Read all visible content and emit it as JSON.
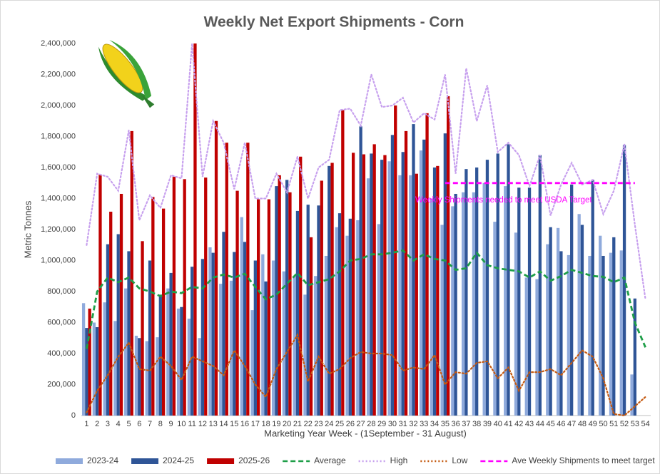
{
  "chart_data": {
    "type": "bar",
    "title": "Weekly Net Export Shipments - Corn",
    "y_label": "Metric Tonnes",
    "x_label": "Marketing Year Week - (1September - 31 August)",
    "annotation": "Weekly Shipments needed to meet USDA Target",
    "grid": false,
    "ylim": [
      0,
      2400000
    ],
    "yticks": [
      0,
      {
        "value": 200000,
        "label": "200,000"
      },
      {
        "value": 400000,
        "label": "400,000"
      },
      {
        "value": 600000,
        "label": "600,000"
      },
      {
        "value": 800000,
        "label": "800,000"
      },
      {
        "value": 1000000,
        "label": "1,000,000"
      },
      {
        "value": 1200000,
        "label": "1,200,000"
      },
      {
        "value": 1400000,
        "label": "1,400,000"
      },
      {
        "value": 1600000,
        "label": "1,600,000"
      },
      {
        "value": 1800000,
        "label": "1,800,000"
      },
      {
        "value": 2000000,
        "label": "2,000,000"
      },
      {
        "value": 2200000,
        "label": "2,200,000"
      },
      {
        "value": 2400000,
        "label": "2,400,000"
      }
    ],
    "categories": [
      "1",
      "2",
      "3",
      "4",
      "5",
      "6",
      "7",
      "8",
      "9",
      "10",
      "11",
      "12",
      "13",
      "14",
      "15",
      "16",
      "17",
      "18",
      "19",
      "20",
      "21",
      "22",
      "23",
      "24",
      "25",
      "26",
      "27",
      "28",
      "29",
      "30",
      "31",
      "32",
      "33",
      "34",
      "35",
      "36",
      "37",
      "38",
      "39",
      "40",
      "41",
      "42",
      "43",
      "44",
      "45",
      "46",
      "47",
      "48",
      "49",
      "50",
      "51",
      "52",
      "53",
      "54"
    ],
    "series": [
      {
        "name": "2023-24",
        "type": "bar",
        "color": "#8faadc",
        "values": [
          725000,
          600000,
          730000,
          610000,
          820000,
          515000,
          480000,
          505000,
          820000,
          690000,
          625000,
          500000,
          1085000,
          850000,
          870000,
          1280000,
          680000,
          1040000,
          1000000,
          930000,
          900000,
          780000,
          900000,
          1030000,
          1215000,
          1160000,
          1260000,
          1530000,
          1235000,
          1640000,
          1550000,
          1550000,
          1710000,
          1400000,
          1230000,
          1350000,
          1440000,
          1440000,
          1500000,
          1250000,
          1480000,
          1180000,
          890000,
          880000,
          1105000,
          1210000,
          1035000,
          1300000,
          1030000,
          1160000,
          1050000,
          1065000,
          265000,
          null
        ]
      },
      {
        "name": "2024-25",
        "type": "bar",
        "color": "#2f5597",
        "values": [
          565000,
          570000,
          1105000,
          1170000,
          1060000,
          500000,
          1000000,
          780000,
          920000,
          700000,
          960000,
          1010000,
          1050000,
          1185000,
          1055000,
          1120000,
          1000000,
          865000,
          1480000,
          1520000,
          1320000,
          1360000,
          1355000,
          1610000,
          1305000,
          1270000,
          1865000,
          1690000,
          1650000,
          1810000,
          1700000,
          1880000,
          1780000,
          1600000,
          1820000,
          1430000,
          1590000,
          1600000,
          1650000,
          1690000,
          1750000,
          1470000,
          1470000,
          1680000,
          1215000,
          1060000,
          1490000,
          1230000,
          1520000,
          1030000,
          1150000,
          1745000,
          755000,
          null
        ]
      },
      {
        "name": "2025-26",
        "type": "bar",
        "color": "#c00000",
        "values": [
          690000,
          1555000,
          1315000,
          1430000,
          1835000,
          1125000,
          1410000,
          1335000,
          1540000,
          1525000,
          2400000,
          1535000,
          1900000,
          1760000,
          1450000,
          1760000,
          1395000,
          1395000,
          1550000,
          1440000,
          1670000,
          1150000,
          1515000,
          1630000,
          1970000,
          1695000,
          1685000,
          1750000,
          1680000,
          2000000,
          1835000,
          1560000,
          1950000,
          1610000,
          2060000,
          null,
          null,
          null,
          null,
          null,
          null,
          null,
          null,
          null,
          null,
          null,
          null,
          null,
          null,
          null,
          null,
          null,
          null,
          null
        ]
      },
      {
        "name": "Average",
        "type": "line",
        "style": "dashed",
        "color": "#1e9e48",
        "values": [
          430000,
          800000,
          890000,
          860000,
          890000,
          820000,
          800000,
          770000,
          800000,
          790000,
          830000,
          820000,
          890000,
          910000,
          890000,
          915000,
          830000,
          750000,
          780000,
          850000,
          920000,
          840000,
          860000,
          880000,
          930000,
          1000000,
          1010000,
          1040000,
          1040000,
          1050000,
          1065000,
          1000000,
          1040000,
          1010000,
          1000000,
          940000,
          950000,
          1050000,
          970000,
          950000,
          940000,
          930000,
          890000,
          930000,
          870000,
          900000,
          940000,
          920000,
          900000,
          895000,
          860000,
          890000,
          600000,
          440000
        ]
      },
      {
        "name": "High",
        "type": "line",
        "style": "dotted",
        "color": "#c7a0ee",
        "values": [
          1100000,
          1560000,
          1540000,
          1450000,
          1840000,
          1260000,
          1420000,
          1340000,
          1550000,
          1530000,
          2400000,
          1540000,
          1900000,
          1760000,
          1460000,
          1760000,
          1400000,
          1400000,
          1560000,
          1440000,
          1670000,
          1400000,
          1600000,
          1650000,
          1970000,
          1980000,
          1870000,
          2200000,
          1990000,
          2000000,
          2050000,
          1890000,
          1950000,
          1910000,
          2200000,
          1560000,
          2240000,
          1900000,
          2130000,
          1700000,
          1760000,
          1680000,
          1480000,
          1680000,
          1290000,
          1490000,
          1630000,
          1490000,
          1520000,
          1300000,
          1450000,
          1750000,
          1230000,
          750000
        ]
      },
      {
        "name": "Low",
        "type": "line",
        "style": "dotted",
        "color": "#c55a11",
        "values": [
          20000,
          160000,
          260000,
          380000,
          470000,
          300000,
          290000,
          380000,
          320000,
          230000,
          380000,
          350000,
          320000,
          260000,
          420000,
          320000,
          200000,
          120000,
          300000,
          410000,
          520000,
          220000,
          380000,
          270000,
          300000,
          370000,
          410000,
          400000,
          400000,
          390000,
          290000,
          310000,
          300000,
          390000,
          200000,
          280000,
          270000,
          340000,
          350000,
          240000,
          310000,
          160000,
          280000,
          280000,
          300000,
          260000,
          340000,
          420000,
          380000,
          240000,
          10000,
          0,
          60000,
          120000
        ]
      },
      {
        "name": "Ave Weekly Shipments to meet target",
        "type": "line",
        "style": "dashed",
        "color": "#ff00ff",
        "values": [
          null,
          null,
          null,
          null,
          null,
          null,
          null,
          null,
          null,
          null,
          null,
          null,
          null,
          null,
          null,
          null,
          null,
          null,
          null,
          null,
          null,
          null,
          null,
          null,
          null,
          null,
          null,
          null,
          null,
          null,
          null,
          null,
          null,
          null,
          1500000,
          1500000,
          1500000,
          1500000,
          1500000,
          1500000,
          1500000,
          1500000,
          1500000,
          1500000,
          1500000,
          1500000,
          1500000,
          1500000,
          1500000,
          1500000,
          1500000,
          1500000,
          1500000,
          null
        ]
      }
    ]
  }
}
